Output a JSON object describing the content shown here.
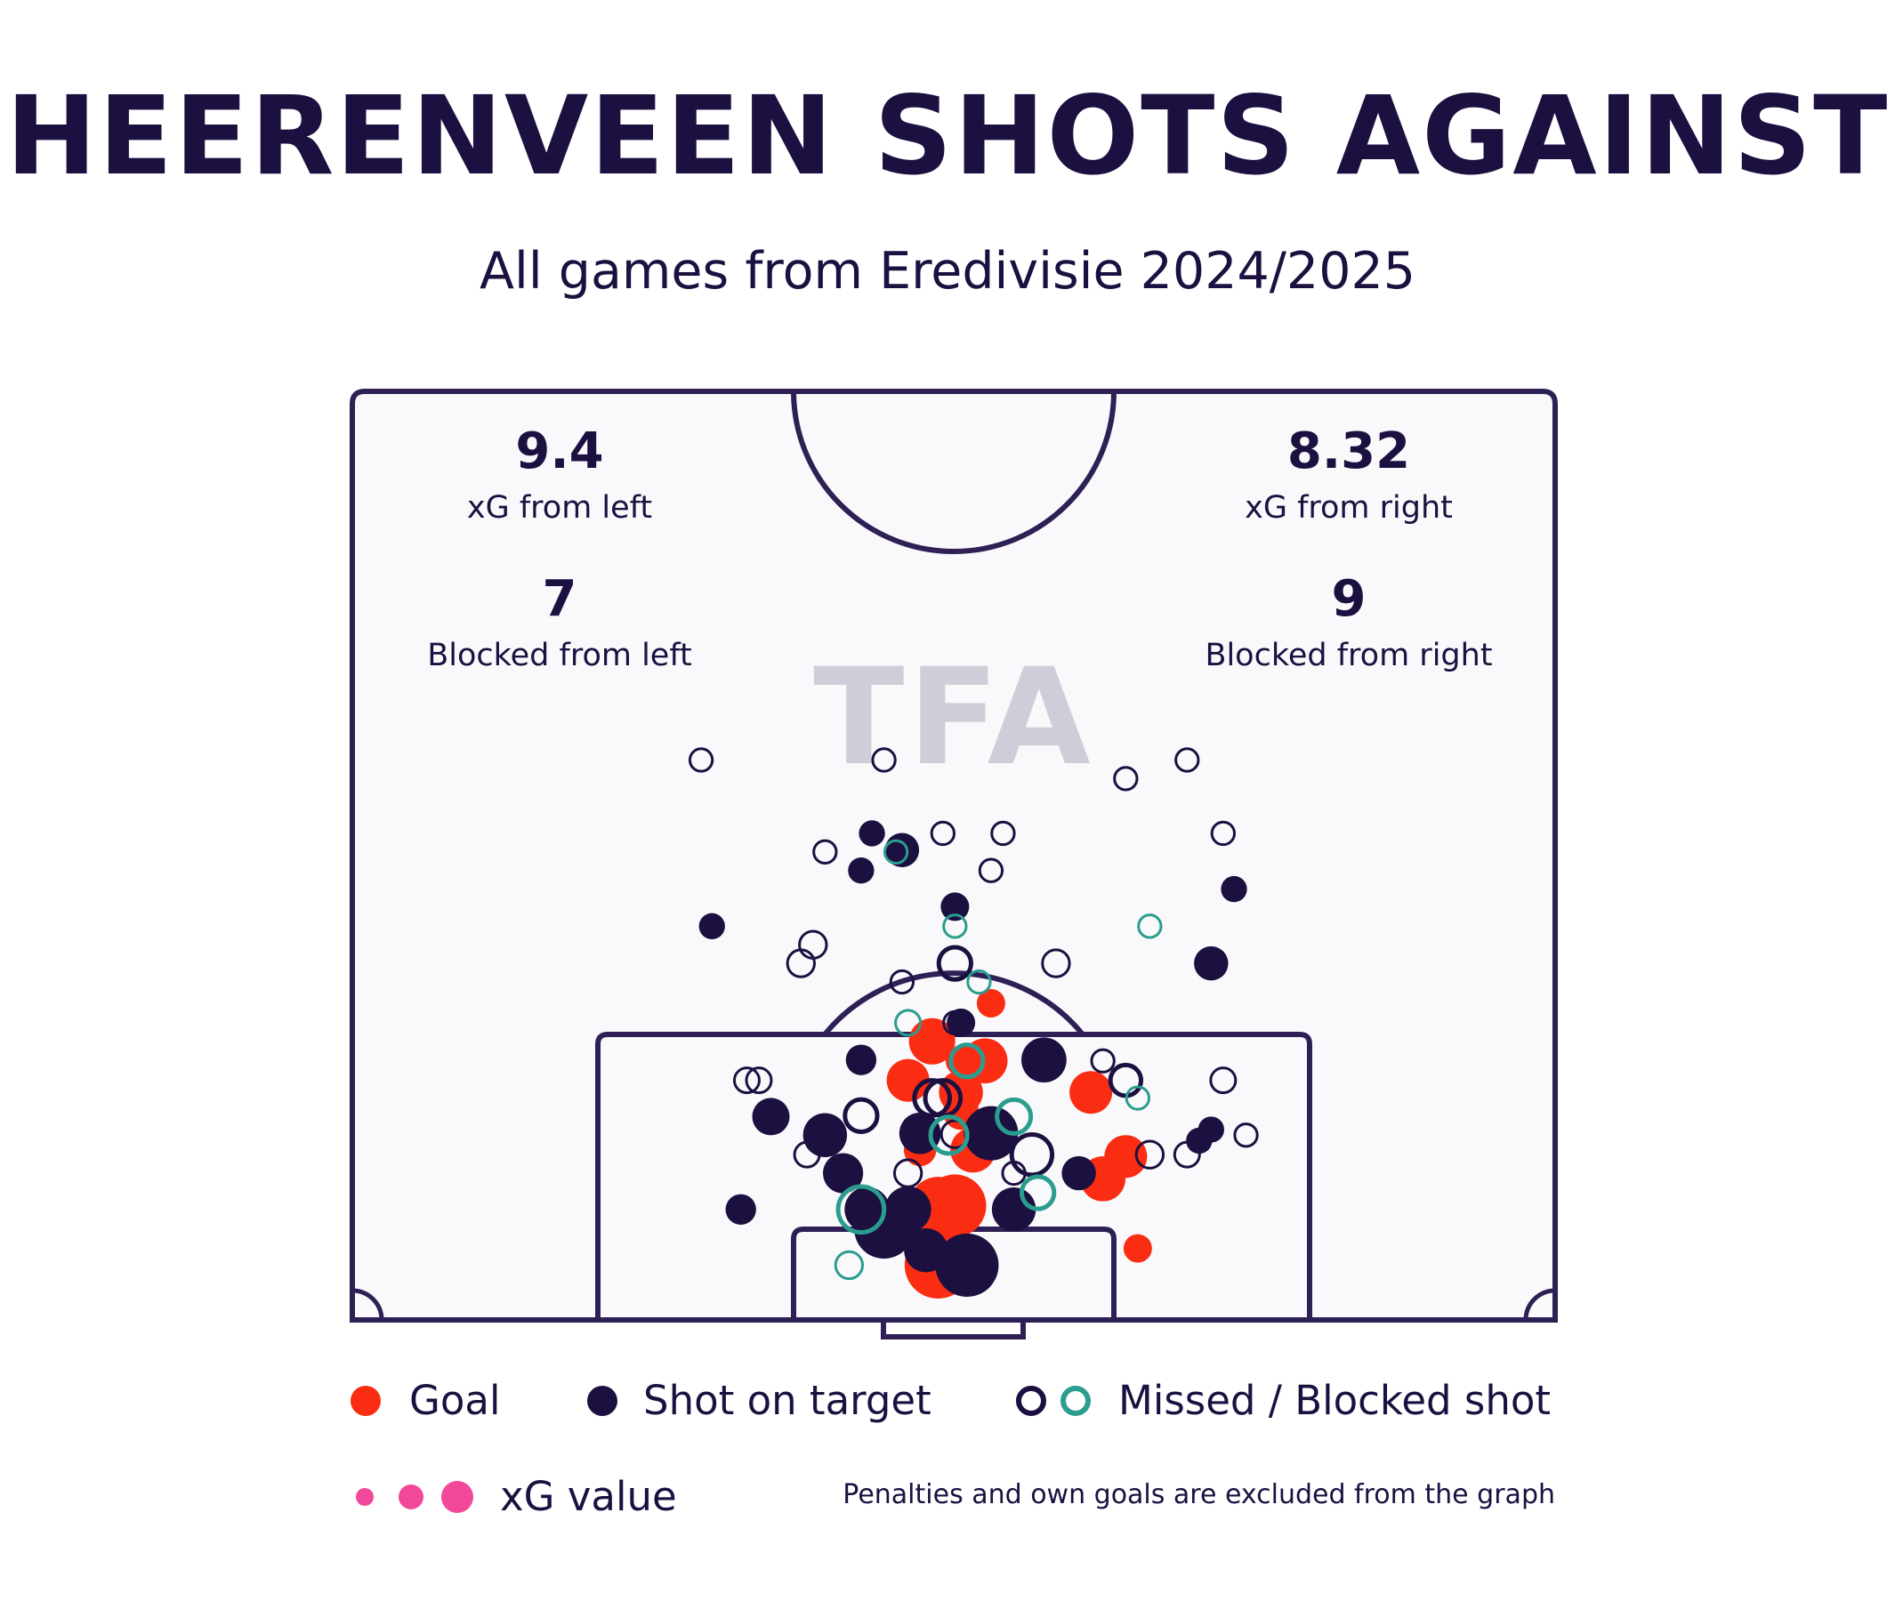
{
  "title": "HEERENVEEN SHOTS AGAINST",
  "subtitle": "All games from Eredivisie 2024/2025",
  "watermark": "TFA",
  "stats": {
    "left_xg": "9.4",
    "left_xg_label": "xG from left",
    "right_xg": "8.32",
    "right_xg_label": "xG from right",
    "left_blocked": "7",
    "left_blocked_label": "Blocked from left",
    "right_blocked": "9",
    "right_blocked_label": "Blocked from right"
  },
  "legend": {
    "goal": "Goal",
    "on_target": "Shot on target",
    "missed": "Missed / Blocked shot",
    "xg": "xG value"
  },
  "note": "Penalties and own goals are excluded from the graph",
  "colors": {
    "ink": "#1c1040",
    "goal": "#fa2d13",
    "missed_teal": "#2a9d8f",
    "xg_legend": "#f2489a",
    "pitch_bg": "#f9f9fb",
    "watermark": "#c9c6d3"
  },
  "chart_data": {
    "type": "scatter",
    "x_range": [
      0,
      100
    ],
    "y_range": [
      0,
      100
    ],
    "series": [
      {
        "name": "Goal",
        "points": [
          {
            "x": 48.2,
            "y": 30.0,
            "xg": 0.16
          },
          {
            "x": 52.6,
            "y": 27.9,
            "xg": 0.15
          },
          {
            "x": 46.2,
            "y": 25.8,
            "xg": 0.13
          },
          {
            "x": 50.6,
            "y": 27.9,
            "xg": 0.05
          },
          {
            "x": 50.6,
            "y": 24.5,
            "xg": 0.14
          },
          {
            "x": 50.6,
            "y": 22.4,
            "xg": 0.08
          },
          {
            "x": 61.4,
            "y": 24.5,
            "xg": 0.13
          },
          {
            "x": 51.6,
            "y": 18.3,
            "xg": 0.15
          },
          {
            "x": 47.2,
            "y": 18.3,
            "xg": 0.06
          },
          {
            "x": 62.4,
            "y": 15.2,
            "xg": 0.15
          },
          {
            "x": 64.3,
            "y": 17.6,
            "xg": 0.13
          },
          {
            "x": 48.7,
            "y": 12.3,
            "xg": 0.28
          },
          {
            "x": 50.1,
            "y": 12.3,
            "xg": 0.34
          },
          {
            "x": 48.7,
            "y": 5.9,
            "xg": 0.4
          },
          {
            "x": 65.3,
            "y": 7.7,
            "xg": 0.04
          },
          {
            "x": 53.1,
            "y": 34.1,
            "xg": 0.04
          }
        ]
      },
      {
        "name": "Shot on target",
        "points": [
          {
            "x": 43.2,
            "y": 52.4,
            "xg": 0.03
          },
          {
            "x": 45.7,
            "y": 50.6,
            "xg": 0.07
          },
          {
            "x": 42.3,
            "y": 48.4,
            "xg": 0.03
          },
          {
            "x": 29.9,
            "y": 42.4,
            "xg": 0.03
          },
          {
            "x": 50.1,
            "y": 44.5,
            "xg": 0.04
          },
          {
            "x": 71.4,
            "y": 38.4,
            "xg": 0.07
          },
          {
            "x": 73.3,
            "y": 46.4,
            "xg": 0.03
          },
          {
            "x": 50.6,
            "y": 32.0,
            "xg": 0.04
          },
          {
            "x": 42.3,
            "y": 28.0,
            "xg": 0.05
          },
          {
            "x": 57.5,
            "y": 28.0,
            "xg": 0.15
          },
          {
            "x": 34.8,
            "y": 21.9,
            "xg": 0.09
          },
          {
            "x": 39.3,
            "y": 19.9,
            "xg": 0.14
          },
          {
            "x": 47.2,
            "y": 20.1,
            "xg": 0.12
          },
          {
            "x": 53.1,
            "y": 20.1,
            "xg": 0.24
          },
          {
            "x": 40.8,
            "y": 15.8,
            "xg": 0.11
          },
          {
            "x": 60.4,
            "y": 15.8,
            "xg": 0.07
          },
          {
            "x": 32.3,
            "y": 11.9,
            "xg": 0.05
          },
          {
            "x": 42.8,
            "y": 11.9,
            "xg": 0.15
          },
          {
            "x": 46.2,
            "y": 11.9,
            "xg": 0.16
          },
          {
            "x": 55.0,
            "y": 11.9,
            "xg": 0.14
          },
          {
            "x": 44.2,
            "y": 9.8,
            "xg": 0.3
          },
          {
            "x": 47.7,
            "y": 7.5,
            "xg": 0.14
          },
          {
            "x": 51.1,
            "y": 5.9,
            "xg": 0.35
          },
          {
            "x": 71.4,
            "y": 20.5,
            "xg": 0.03
          },
          {
            "x": 70.4,
            "y": 19.3,
            "xg": 0.03
          }
        ]
      },
      {
        "name": "Missed shot",
        "color": "ink",
        "points": [
          {
            "x": 29.0,
            "y": 60.3,
            "xg": 0.03
          },
          {
            "x": 44.2,
            "y": 60.3,
            "xg": 0.03
          },
          {
            "x": 64.3,
            "y": 58.3,
            "xg": 0.03
          },
          {
            "x": 69.4,
            "y": 60.3,
            "xg": 0.03
          },
          {
            "x": 39.3,
            "y": 50.4,
            "xg": 0.03
          },
          {
            "x": 49.1,
            "y": 52.4,
            "xg": 0.03
          },
          {
            "x": 54.1,
            "y": 52.4,
            "xg": 0.03
          },
          {
            "x": 53.1,
            "y": 48.4,
            "xg": 0.03
          },
          {
            "x": 72.4,
            "y": 52.4,
            "xg": 0.03
          },
          {
            "x": 38.3,
            "y": 40.4,
            "xg": 0.05
          },
          {
            "x": 37.3,
            "y": 38.4,
            "xg": 0.05
          },
          {
            "x": 50.1,
            "y": 38.4,
            "xg": 0.08
          },
          {
            "x": 58.5,
            "y": 38.4,
            "xg": 0.05
          },
          {
            "x": 45.7,
            "y": 36.4,
            "xg": 0.03
          },
          {
            "x": 50.1,
            "y": 32.0,
            "xg": 0.03
          },
          {
            "x": 32.8,
            "y": 25.8,
            "xg": 0.04
          },
          {
            "x": 33.8,
            "y": 25.8,
            "xg": 0.04
          },
          {
            "x": 62.4,
            "y": 27.9,
            "xg": 0.03
          },
          {
            "x": 64.3,
            "y": 25.8,
            "xg": 0.07
          },
          {
            "x": 72.4,
            "y": 25.8,
            "xg": 0.04
          },
          {
            "x": 42.3,
            "y": 22.0,
            "xg": 0.08
          },
          {
            "x": 48.2,
            "y": 23.9,
            "xg": 0.1
          },
          {
            "x": 49.1,
            "y": 23.9,
            "xg": 0.1
          },
          {
            "x": 50.1,
            "y": 20.0,
            "xg": 0.05
          },
          {
            "x": 56.5,
            "y": 17.8,
            "xg": 0.14
          },
          {
            "x": 37.8,
            "y": 17.8,
            "xg": 0.04
          },
          {
            "x": 46.2,
            "y": 15.8,
            "xg": 0.05
          },
          {
            "x": 55.0,
            "y": 15.8,
            "xg": 0.03
          },
          {
            "x": 66.3,
            "y": 17.8,
            "xg": 0.05
          },
          {
            "x": 69.4,
            "y": 17.8,
            "xg": 0.04
          },
          {
            "x": 74.3,
            "y": 19.9,
            "xg": 0.03
          }
        ]
      },
      {
        "name": "Blocked shot",
        "color": "teal",
        "points": [
          {
            "x": 45.2,
            "y": 50.4,
            "xg": 0.03
          },
          {
            "x": 66.3,
            "y": 42.4,
            "xg": 0.03
          },
          {
            "x": 50.1,
            "y": 42.4,
            "xg": 0.03
          },
          {
            "x": 52.1,
            "y": 36.4,
            "xg": 0.03
          },
          {
            "x": 46.2,
            "y": 32.0,
            "xg": 0.04
          },
          {
            "x": 51.1,
            "y": 27.9,
            "xg": 0.08
          },
          {
            "x": 65.3,
            "y": 23.9,
            "xg": 0.03
          },
          {
            "x": 55.0,
            "y": 21.9,
            "xg": 0.09
          },
          {
            "x": 49.6,
            "y": 19.9,
            "xg": 0.11
          },
          {
            "x": 57.0,
            "y": 13.7,
            "xg": 0.08
          },
          {
            "x": 42.3,
            "y": 11.9,
            "xg": 0.19
          },
          {
            "x": 41.3,
            "y": 5.9,
            "xg": 0.05
          }
        ]
      }
    ]
  }
}
